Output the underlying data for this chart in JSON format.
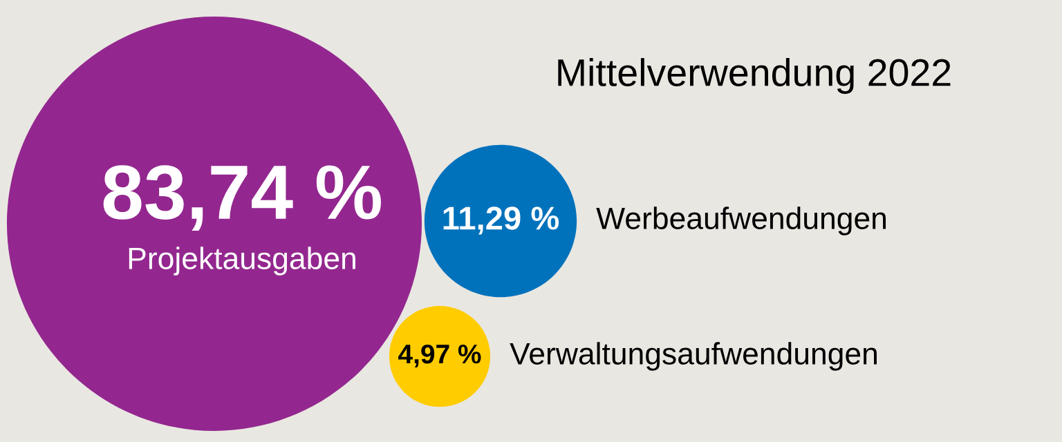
{
  "chart_data": {
    "type": "other",
    "title": "Mittelverwendung 2022",
    "categories": [
      "Projektausgaben",
      "Werbeaufwendungen",
      "Verwaltungsaufwendungen"
    ],
    "values": [
      83.74,
      11.29,
      4.97
    ],
    "value_labels": [
      "83,74 %",
      "11,29 %",
      "4,97 %"
    ],
    "colors": [
      "#93278f",
      "#0072bc",
      "#ffcc00"
    ]
  }
}
